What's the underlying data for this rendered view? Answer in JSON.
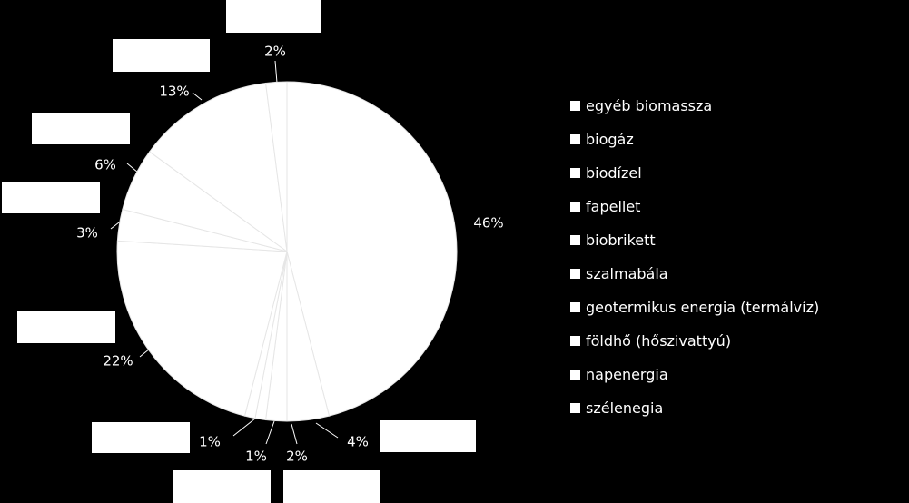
{
  "chart_data": {
    "type": "pie",
    "title": "",
    "categories": [
      "egyéb biomassza",
      "biogáz",
      "biodízel",
      "fapellet",
      "biobrikett",
      "szalmabála",
      "geotermikus energia (termálvíz)",
      "földhő (hőszivattyú)",
      "napenergia",
      "szélenegia"
    ],
    "slices_clockwise_from_top": [
      {
        "label": "46%",
        "value": 46
      },
      {
        "label": "4%",
        "value": 4
      },
      {
        "label": "2%",
        "value": 2
      },
      {
        "label": "1%",
        "value": 1
      },
      {
        "label": "1%",
        "value": 1
      },
      {
        "label": "22%",
        "value": 22
      },
      {
        "label": "3%",
        "value": 3
      },
      {
        "label": "6%",
        "value": 6
      },
      {
        "label": "13%",
        "value": 13
      },
      {
        "label": "2%",
        "value": 2
      }
    ],
    "legend_position": "right",
    "colors": {
      "background": "#000000",
      "slice_fill": "#ffffff",
      "slice_border": "#e6e6e6",
      "text": "#ffffff",
      "legend_swatch": "#ffffff",
      "label_box": "#ffffff",
      "leader_line": "#ffffff"
    }
  }
}
